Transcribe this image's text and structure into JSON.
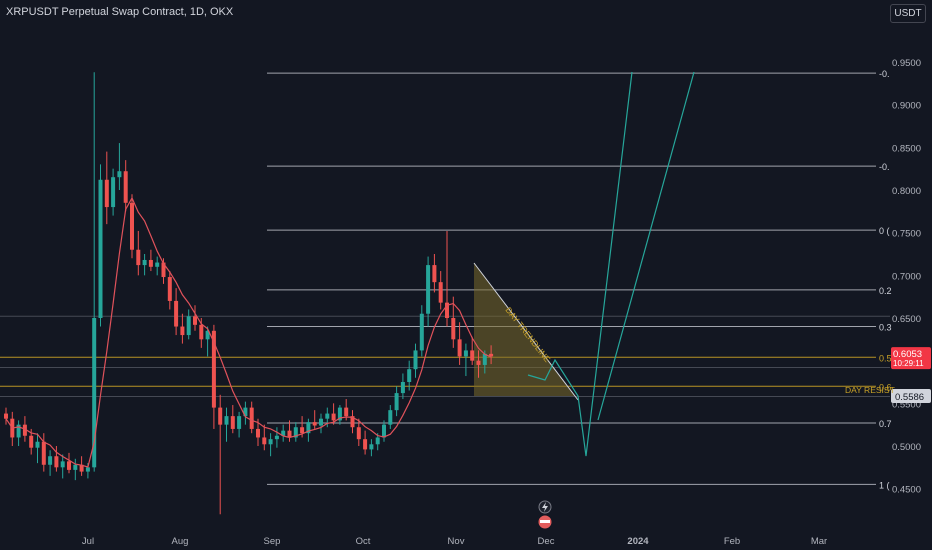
{
  "header": {
    "title": "XRPUSDT Perpetual Swap Contract, 1D, OKX",
    "currency": "USDT"
  },
  "colors": {
    "up": "#26a69a",
    "down": "#ef5350",
    "ma": "#e0525b",
    "fib_line": "#d1d4dc",
    "fib_gold": "#c9a227",
    "projection": "#26a69a",
    "wedge_fill": "#7a6a2a"
  },
  "chart_data": {
    "type": "candlestick",
    "y_axis": {
      "ticks": [
        "0.9500",
        "0.9000",
        "0.8500",
        "0.8000",
        "0.7500",
        "0.7000",
        "0.6500",
        "0.6000",
        "0.5500",
        "0.5000",
        "0.4500"
      ],
      "current_price": "0.6053",
      "countdown": "10:29:11",
      "level_badge": "0.5586"
    },
    "x_axis": {
      "labels": [
        "Jul",
        "Aug",
        "Sep",
        "Oct",
        "Nov",
        "Dec",
        "2024",
        "Feb",
        "Mar"
      ]
    },
    "fib_levels": [
      {
        "label": "-0.",
        "price": 0.937
      },
      {
        "label": "-0.",
        "price": 0.828
      },
      {
        "label": "0 (",
        "price": 0.753
      },
      {
        "label": "0.2",
        "price": 0.683
      },
      {
        "label": "0.3",
        "price": 0.64
      },
      {
        "label": "0.5",
        "price": 0.604
      },
      {
        "label": "0.6",
        "price": 0.57
      },
      {
        "label": "0.7",
        "price": 0.527
      },
      {
        "label": "1 (",
        "price": 0.455
      }
    ],
    "annotations": {
      "trendline_label": "DAY TRENDLINE",
      "resistance_label": "DAY RESIST"
    },
    "candles": [
      [
        0.538,
        0.545,
        0.525,
        0.532
      ],
      [
        0.532,
        0.54,
        0.5,
        0.51
      ],
      [
        0.51,
        0.53,
        0.5,
        0.525
      ],
      [
        0.525,
        0.535,
        0.505,
        0.512
      ],
      [
        0.512,
        0.52,
        0.49,
        0.498
      ],
      [
        0.498,
        0.515,
        0.48,
        0.505
      ],
      [
        0.505,
        0.515,
        0.47,
        0.478
      ],
      [
        0.478,
        0.495,
        0.465,
        0.488
      ],
      [
        0.488,
        0.5,
        0.47,
        0.475
      ],
      [
        0.475,
        0.49,
        0.462,
        0.482
      ],
      [
        0.482,
        0.492,
        0.468,
        0.472
      ],
      [
        0.472,
        0.485,
        0.46,
        0.478
      ],
      [
        0.478,
        0.488,
        0.465,
        0.47
      ],
      [
        0.47,
        0.48,
        0.462,
        0.475
      ],
      [
        0.475,
        0.938,
        0.47,
        0.65
      ],
      [
        0.65,
        0.83,
        0.64,
        0.812
      ],
      [
        0.812,
        0.845,
        0.76,
        0.78
      ],
      [
        0.78,
        0.825,
        0.77,
        0.815
      ],
      [
        0.815,
        0.855,
        0.8,
        0.822
      ],
      [
        0.822,
        0.835,
        0.775,
        0.785
      ],
      [
        0.785,
        0.795,
        0.72,
        0.73
      ],
      [
        0.73,
        0.752,
        0.7,
        0.712
      ],
      [
        0.712,
        0.725,
        0.7,
        0.718
      ],
      [
        0.718,
        0.73,
        0.705,
        0.71
      ],
      [
        0.71,
        0.722,
        0.7,
        0.715
      ],
      [
        0.715,
        0.72,
        0.69,
        0.698
      ],
      [
        0.698,
        0.705,
        0.66,
        0.67
      ],
      [
        0.67,
        0.685,
        0.63,
        0.64
      ],
      [
        0.64,
        0.655,
        0.62,
        0.63
      ],
      [
        0.63,
        0.66,
        0.625,
        0.652
      ],
      [
        0.652,
        0.665,
        0.635,
        0.642
      ],
      [
        0.642,
        0.65,
        0.615,
        0.625
      ],
      [
        0.625,
        0.64,
        0.605,
        0.635
      ],
      [
        0.635,
        0.642,
        0.52,
        0.545
      ],
      [
        0.545,
        0.56,
        0.42,
        0.525
      ],
      [
        0.525,
        0.545,
        0.505,
        0.535
      ],
      [
        0.535,
        0.548,
        0.515,
        0.52
      ],
      [
        0.52,
        0.54,
        0.51,
        0.535
      ],
      [
        0.535,
        0.552,
        0.525,
        0.545
      ],
      [
        0.545,
        0.552,
        0.515,
        0.52
      ],
      [
        0.52,
        0.532,
        0.5,
        0.51
      ],
      [
        0.51,
        0.525,
        0.495,
        0.502
      ],
      [
        0.502,
        0.515,
        0.488,
        0.508
      ],
      [
        0.508,
        0.522,
        0.498,
        0.512
      ],
      [
        0.512,
        0.525,
        0.505,
        0.518
      ],
      [
        0.518,
        0.53,
        0.505,
        0.51
      ],
      [
        0.51,
        0.528,
        0.505,
        0.522
      ],
      [
        0.522,
        0.535,
        0.51,
        0.515
      ],
      [
        0.515,
        0.532,
        0.505,
        0.528
      ],
      [
        0.528,
        0.542,
        0.52,
        0.524
      ],
      [
        0.524,
        0.538,
        0.515,
        0.532
      ],
      [
        0.532,
        0.545,
        0.522,
        0.538
      ],
      [
        0.538,
        0.55,
        0.525,
        0.53
      ],
      [
        0.53,
        0.548,
        0.525,
        0.545
      ],
      [
        0.545,
        0.555,
        0.53,
        0.535
      ],
      [
        0.535,
        0.542,
        0.515,
        0.522
      ],
      [
        0.522,
        0.532,
        0.5,
        0.508
      ],
      [
        0.508,
        0.518,
        0.49,
        0.496
      ],
      [
        0.496,
        0.508,
        0.488,
        0.502
      ],
      [
        0.502,
        0.515,
        0.495,
        0.51
      ],
      [
        0.51,
        0.53,
        0.505,
        0.525
      ],
      [
        0.525,
        0.548,
        0.52,
        0.542
      ],
      [
        0.542,
        0.57,
        0.535,
        0.562
      ],
      [
        0.562,
        0.585,
        0.555,
        0.575
      ],
      [
        0.575,
        0.6,
        0.565,
        0.59
      ],
      [
        0.59,
        0.62,
        0.58,
        0.612
      ],
      [
        0.612,
        0.665,
        0.605,
        0.655
      ],
      [
        0.655,
        0.722,
        0.64,
        0.712
      ],
      [
        0.712,
        0.725,
        0.68,
        0.692
      ],
      [
        0.692,
        0.705,
        0.66,
        0.668
      ],
      [
        0.668,
        0.752,
        0.64,
        0.65
      ],
      [
        0.65,
        0.675,
        0.615,
        0.625
      ],
      [
        0.625,
        0.645,
        0.595,
        0.605
      ],
      [
        0.605,
        0.62,
        0.582,
        0.612
      ],
      [
        0.612,
        0.628,
        0.595,
        0.6
      ],
      [
        0.6,
        0.612,
        0.58,
        0.595
      ],
      [
        0.595,
        0.612,
        0.585,
        0.608
      ],
      [
        0.608,
        0.618,
        0.596,
        0.605
      ]
    ]
  }
}
